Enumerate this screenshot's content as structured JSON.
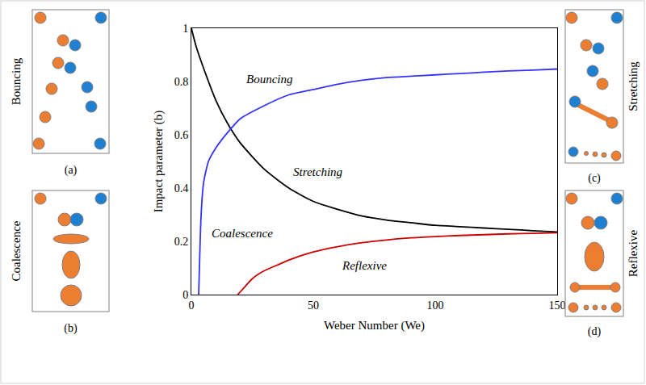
{
  "chart_data": {
    "type": "line",
    "xlabel": "Weber Number (We)",
    "ylabel": "Impact parameter (b)",
    "xlim": [
      0,
      150
    ],
    "xticks": [
      0,
      50,
      100,
      150
    ],
    "ylim": [
      0,
      1
    ],
    "yticks": [
      0,
      0.2,
      0.4,
      0.6,
      0.8,
      1
    ],
    "grid": false,
    "series": [
      {
        "color": "#000000",
        "x": [
          0,
          2,
          5,
          10,
          15,
          20,
          30,
          40,
          50,
          60,
          70,
          80,
          90,
          100,
          110,
          120,
          130,
          140,
          150
        ],
        "values": [
          1.0,
          0.93,
          0.85,
          0.73,
          0.64,
          0.57,
          0.47,
          0.4,
          0.35,
          0.32,
          0.295,
          0.28,
          0.27,
          0.26,
          0.255,
          0.25,
          0.245,
          0.24,
          0.235
        ]
      },
      {
        "color": "#3333ff",
        "x": [
          3,
          4,
          5,
          7,
          10,
          15,
          20,
          30,
          40,
          50,
          60,
          70,
          80,
          90,
          100,
          110,
          120,
          130,
          140,
          150
        ],
        "values": [
          0,
          0.3,
          0.42,
          0.5,
          0.55,
          0.61,
          0.66,
          0.71,
          0.75,
          0.77,
          0.79,
          0.805,
          0.815,
          0.82,
          0.825,
          0.83,
          0.835,
          0.84,
          0.843,
          0.847
        ]
      },
      {
        "color": "#cc0000",
        "x": [
          19,
          22,
          25,
          30,
          35,
          40,
          50,
          60,
          70,
          80,
          90,
          100,
          110,
          120,
          130,
          140,
          150
        ],
        "values": [
          0,
          0.03,
          0.06,
          0.09,
          0.11,
          0.13,
          0.16,
          0.18,
          0.195,
          0.205,
          0.213,
          0.218,
          0.222,
          0.225,
          0.228,
          0.23,
          0.232
        ]
      }
    ],
    "annotations": [
      {
        "text": "Bouncing",
        "x": 32,
        "y": 0.81
      },
      {
        "text": "Stretching",
        "x": 52,
        "y": 0.46
      },
      {
        "text": "Coalescence",
        "x": 21,
        "y": 0.23
      },
      {
        "text": "Reflexive",
        "x": 71,
        "y": 0.11
      }
    ]
  },
  "panels": [
    {
      "label": "Bouncing",
      "caption": "(a)"
    },
    {
      "label": "Coalescence",
      "caption": "(b)"
    },
    {
      "label": "Stretching",
      "caption": "(c)"
    },
    {
      "label": "Reflexive",
      "caption": "(d)"
    }
  ]
}
